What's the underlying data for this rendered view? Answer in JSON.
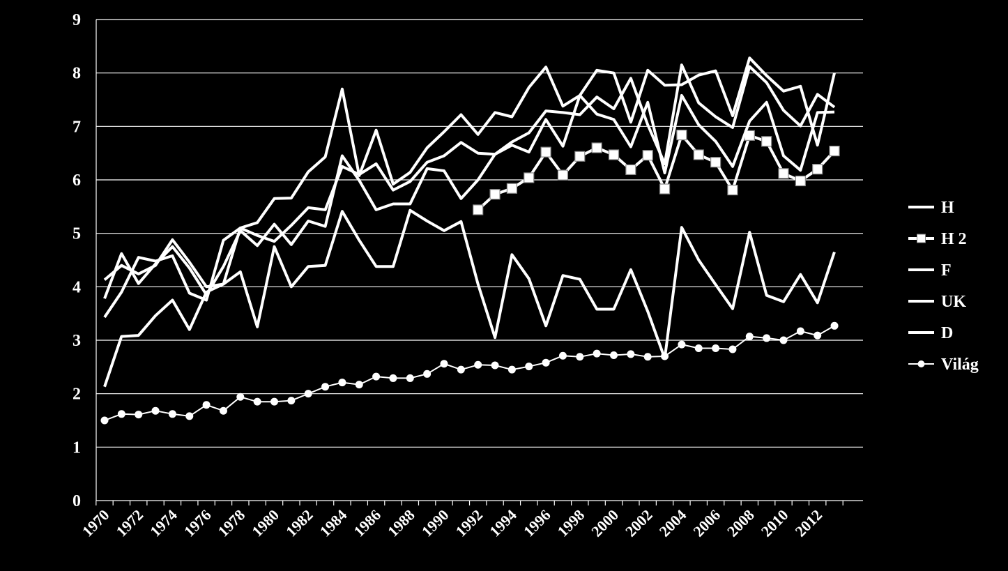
{
  "colors": {
    "background": "#000000",
    "line": "#ffffff",
    "grid": "#ffffff"
  },
  "chart_data": {
    "type": "line",
    "title": "",
    "xlabel": "",
    "ylabel": "",
    "ylim": [
      0,
      9
    ],
    "yticks": [
      0,
      1,
      2,
      3,
      4,
      5,
      6,
      7,
      8,
      9
    ],
    "xlim": [
      1970,
      2013
    ],
    "x_tick_labels": [
      "1970",
      "1972",
      "1974",
      "1976",
      "1978",
      "1980",
      "1982",
      "1984",
      "1986",
      "1988",
      "1990",
      "1992",
      "1994",
      "1996",
      "1998",
      "2000",
      "2002",
      "2004",
      "2006",
      "2008",
      "2010",
      "2012"
    ],
    "grid": true,
    "legend_position": "right",
    "x": [
      1970,
      1971,
      1972,
      1973,
      1974,
      1975,
      1976,
      1977,
      1978,
      1979,
      1980,
      1981,
      1982,
      1983,
      1984,
      1985,
      1986,
      1987,
      1988,
      1989,
      1990,
      1991,
      1992,
      1993,
      1994,
      1995,
      1996,
      1997,
      1998,
      1999,
      2000,
      2001,
      2002,
      2003,
      2004,
      2005,
      2006,
      2007,
      2008,
      2009,
      2010,
      2011,
      2012,
      2013
    ],
    "series": [
      {
        "name": "H",
        "marker": "none",
        "values": [
          3.43,
          3.9,
          4.55,
          4.48,
          4.58,
          3.88,
          3.75,
          4.87,
          5.1,
          5.2,
          5.65,
          5.66,
          6.15,
          6.43,
          7.7,
          6.08,
          6.93,
          5.92,
          6.14,
          6.6,
          6.9,
          7.22,
          6.85,
          7.26,
          7.18,
          7.73,
          8.11,
          7.38,
          7.58,
          8.05,
          8.0,
          7.08,
          8.05,
          7.77,
          7.78,
          7.96,
          8.04,
          7.2,
          8.28,
          7.95,
          7.66,
          7.75,
          6.65,
          8.0
        ]
      },
      {
        "name": "H 2",
        "marker": "square",
        "values": [
          null,
          null,
          null,
          null,
          null,
          null,
          null,
          null,
          null,
          null,
          null,
          null,
          null,
          null,
          null,
          null,
          null,
          null,
          null,
          null,
          null,
          null,
          5.44,
          5.73,
          5.84,
          6.04,
          6.52,
          6.09,
          6.44,
          6.6,
          6.47,
          6.19,
          6.46,
          5.83,
          6.84,
          6.47,
          6.33,
          5.81,
          6.83,
          6.72,
          6.12,
          5.98,
          6.2,
          6.54
        ]
      },
      {
        "name": "F",
        "marker": "none",
        "values": [
          4.13,
          4.4,
          4.24,
          4.4,
          4.88,
          4.46,
          4.0,
          4.05,
          5.1,
          4.96,
          4.85,
          5.15,
          5.48,
          5.44,
          6.25,
          6.1,
          6.3,
          5.81,
          5.97,
          6.33,
          6.45,
          6.7,
          6.5,
          6.48,
          6.71,
          6.88,
          7.29,
          7.26,
          7.22,
          7.55,
          7.33,
          7.9,
          7.03,
          6.3,
          8.15,
          7.44,
          7.18,
          6.98,
          8.12,
          7.82,
          7.3,
          7.01,
          7.6,
          7.36
        ]
      },
      {
        "name": "UK",
        "marker": "none",
        "values": [
          3.78,
          4.62,
          4.06,
          4.43,
          4.75,
          4.35,
          3.85,
          4.38,
          5.05,
          4.77,
          5.17,
          4.79,
          5.23,
          5.13,
          6.45,
          5.99,
          5.44,
          5.55,
          5.55,
          6.21,
          6.17,
          5.65,
          6.0,
          6.48,
          6.65,
          6.52,
          7.13,
          6.63,
          7.58,
          7.23,
          7.13,
          6.62,
          7.45,
          6.13,
          7.58,
          7.03,
          6.72,
          6.25,
          7.1,
          7.45,
          6.45,
          6.18,
          7.26,
          7.27
        ]
      },
      {
        "name": "D",
        "marker": "none",
        "values": [
          2.13,
          3.07,
          3.09,
          3.46,
          3.75,
          3.2,
          3.9,
          4.05,
          4.28,
          3.25,
          4.75,
          4.0,
          4.38,
          4.4,
          5.41,
          4.87,
          4.38,
          4.38,
          5.43,
          5.23,
          5.05,
          5.22,
          4.05,
          3.05,
          4.6,
          4.15,
          3.27,
          4.21,
          4.14,
          3.58,
          3.58,
          4.32,
          3.54,
          2.66,
          5.11,
          4.5,
          4.04,
          3.59,
          5.02,
          3.84,
          3.72,
          4.23,
          3.7,
          4.65
        ]
      },
      {
        "name": "Világ",
        "marker": "circle",
        "values": [
          1.5,
          1.62,
          1.61,
          1.68,
          1.62,
          1.58,
          1.79,
          1.68,
          1.94,
          1.85,
          1.85,
          1.87,
          2.0,
          2.13,
          2.21,
          2.17,
          2.32,
          2.29,
          2.29,
          2.37,
          2.56,
          2.45,
          2.54,
          2.53,
          2.45,
          2.51,
          2.58,
          2.71,
          2.69,
          2.75,
          2.72,
          2.74,
          2.69,
          2.7,
          2.92,
          2.85,
          2.85,
          2.83,
          3.07,
          3.04,
          3.0,
          3.17,
          3.09,
          3.27
        ]
      }
    ]
  }
}
